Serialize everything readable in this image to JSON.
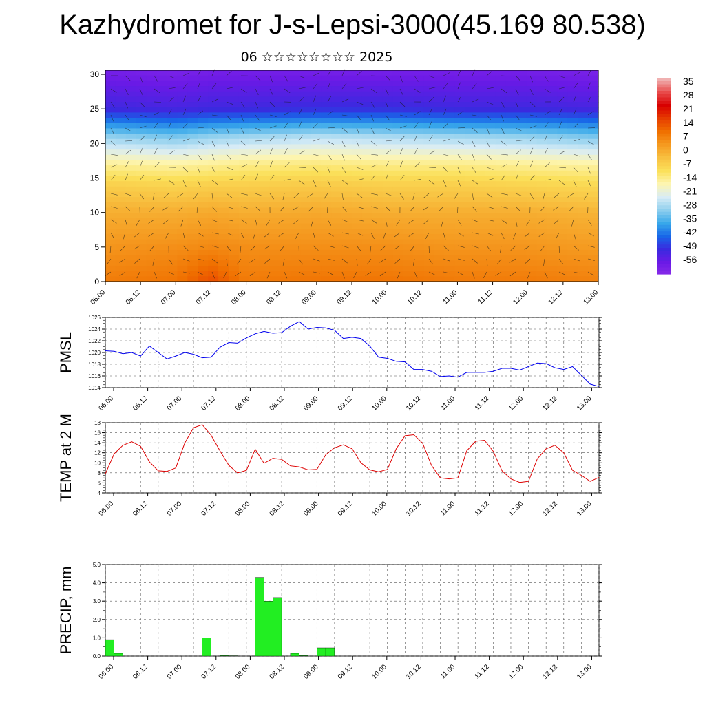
{
  "title": "Kazhydromet for J-s-Lepsi-3000(45.169 80.538)",
  "subtitle": "06 ☆☆☆☆☆☆☆☆ 2025",
  "x_tick_labels": [
    "06.00",
    "06.12",
    "07.00",
    "07.12",
    "08.00",
    "08.12",
    "09.00",
    "09.12",
    "10.00",
    "10.12",
    "11.00",
    "11.12",
    "12.00",
    "12.12",
    "13.00"
  ],
  "colors": {
    "pmsl": "#0000ee",
    "temp": "#dd0000",
    "precip": "#22ee22"
  },
  "chart_data": [
    {
      "type": "heatmap",
      "name": "cross-section",
      "x_range": [
        0,
        168
      ],
      "y_range": [
        0,
        30
      ],
      "y_ticks": [
        0,
        5,
        10,
        15,
        20,
        25,
        30
      ],
      "colorbar_labels": [
        "35",
        "28",
        "21",
        "14",
        "7",
        "0",
        "-7",
        "-14",
        "-21",
        "-28",
        "-35",
        "-42",
        "-49",
        "-56"
      ],
      "colorbar_colors": [
        "#f0b0b0",
        "#e84a4a",
        "#d80000",
        "#e63c00",
        "#f07000",
        "#f59a20",
        "#f8c040",
        "#fbe05a",
        "#fdf5b0",
        "#d8ecf6",
        "#8ecfee",
        "#38a8ea",
        "#1866e8",
        "#3a2adf",
        "#6a1ae6",
        "#8a2be8"
      ],
      "columns": [
        {
          "x": 0,
          "levels": [
            8,
            4,
            0,
            -6,
            -14,
            -28,
            -48,
            -55
          ]
        },
        {
          "x": 24,
          "levels": [
            9,
            5,
            0,
            -7,
            -15,
            -30,
            -49,
            -56
          ]
        },
        {
          "x": 36,
          "levels": [
            14,
            6,
            1,
            -6,
            -14,
            -28,
            -48,
            -55
          ]
        },
        {
          "x": 48,
          "levels": [
            8,
            5,
            0,
            -6,
            -13,
            -27,
            -48,
            -55
          ]
        },
        {
          "x": 72,
          "levels": [
            9,
            5,
            1,
            -5,
            -12,
            -25,
            -47,
            -55
          ]
        },
        {
          "x": 96,
          "levels": [
            9,
            5,
            0,
            -6,
            -13,
            -26,
            -47,
            -55
          ]
        },
        {
          "x": 120,
          "levels": [
            8,
            4,
            0,
            -6,
            -13,
            -27,
            -48,
            -55
          ]
        },
        {
          "x": 144,
          "levels": [
            8,
            4,
            0,
            -7,
            -14,
            -28,
            -48,
            -55
          ]
        },
        {
          "x": 168,
          "levels": [
            7,
            3,
            -1,
            -8,
            -15,
            -30,
            -49,
            -56
          ]
        }
      ],
      "level_heights": [
        0,
        5,
        10,
        14,
        17,
        21,
        25,
        30
      ]
    },
    {
      "type": "line",
      "name": "pmsl",
      "ylabel": "PMSL",
      "ylim": [
        1014,
        1026
      ],
      "y_ticks": [
        1014,
        1016,
        1018,
        1020,
        1022,
        1024,
        1026
      ],
      "x": [
        0,
        3,
        6,
        9,
        12,
        15,
        18,
        21,
        24,
        27,
        30,
        33,
        36,
        39,
        42,
        45,
        48,
        51,
        54,
        57,
        60,
        63,
        66,
        69,
        72,
        75,
        78,
        81,
        84,
        87,
        90,
        93,
        96,
        99,
        102,
        105,
        108,
        111,
        114,
        117,
        120,
        123,
        126,
        129,
        132,
        135,
        138,
        141,
        144,
        147,
        150,
        153,
        156,
        159,
        162,
        165,
        168
      ],
      "values": [
        1020.3,
        1020.2,
        1019.8,
        1020.0,
        1019.4,
        1021.1,
        1020.0,
        1018.9,
        1019.4,
        1020.0,
        1019.7,
        1019.1,
        1019.2,
        1020.9,
        1021.7,
        1021.6,
        1022.5,
        1023.2,
        1023.6,
        1023.3,
        1023.4,
        1024.5,
        1025.3,
        1024.0,
        1024.3,
        1024.2,
        1023.8,
        1022.4,
        1022.6,
        1022.4,
        1021.1,
        1019.2,
        1019.0,
        1018.5,
        1018.4,
        1017.1,
        1017.1,
        1016.8,
        1015.9,
        1016.0,
        1015.8,
        1016.6,
        1016.6,
        1016.6,
        1016.8,
        1017.3,
        1017.3,
        1017.0,
        1017.6,
        1018.2,
        1018.1,
        1017.4,
        1017.1,
        1017.6,
        1016.1,
        1014.6,
        1014.2
      ]
    },
    {
      "type": "line",
      "name": "temp",
      "ylabel": "TEMP at 2 M",
      "ylim": [
        4,
        18
      ],
      "y_ticks": [
        4,
        6,
        8,
        10,
        12,
        14,
        16,
        18
      ],
      "x": [
        0,
        3,
        6,
        9,
        12,
        15,
        18,
        21,
        24,
        27,
        30,
        33,
        36,
        39,
        42,
        45,
        48,
        51,
        54,
        57,
        60,
        63,
        66,
        69,
        72,
        75,
        78,
        81,
        84,
        87,
        90,
        93,
        96,
        99,
        102,
        105,
        108,
        111,
        114,
        117,
        120,
        123,
        126,
        129,
        132,
        135,
        138,
        141,
        144,
        147,
        150,
        153,
        156,
        159,
        162,
        165,
        168
      ],
      "values": [
        7.8,
        11.8,
        13.5,
        14.2,
        13.3,
        10.2,
        8.4,
        8.3,
        9.0,
        13.9,
        17.0,
        17.6,
        15.5,
        12.4,
        9.5,
        8.0,
        8.5,
        12.7,
        9.9,
        10.9,
        10.7,
        9.4,
        9.2,
        8.6,
        8.7,
        11.6,
        13.0,
        13.6,
        12.8,
        10.0,
        8.6,
        8.2,
        8.7,
        12.8,
        15.4,
        15.6,
        13.9,
        9.5,
        7.0,
        6.8,
        7.0,
        12.4,
        14.3,
        14.5,
        12.3,
        8.4,
        6.8,
        6.1,
        6.3,
        10.8,
        12.8,
        13.5,
        12.0,
        8.5,
        7.5,
        6.3,
        7.1
      ]
    },
    {
      "type": "bar",
      "name": "precip",
      "ylabel": "PRECIP, mm",
      "ylim": [
        0,
        5
      ],
      "y_ticks": [
        "0.0",
        "1.0",
        "2.0",
        "3.0",
        "4.0",
        "5.0"
      ],
      "x": [
        3,
        6,
        9,
        12,
        15,
        18,
        21,
        24,
        27,
        30,
        33,
        36,
        39,
        42,
        45,
        48,
        51,
        54,
        57,
        60,
        63,
        66,
        69,
        72,
        75,
        78,
        81,
        84,
        87,
        90,
        93,
        96,
        99,
        102,
        105,
        108,
        111,
        114,
        117,
        120,
        123,
        126,
        129,
        132,
        135,
        138,
        141,
        144,
        147,
        150,
        153,
        156,
        159,
        162,
        165,
        168
      ],
      "values": [
        0.9,
        0.15,
        0,
        0,
        0,
        0,
        0,
        0,
        0,
        0,
        0,
        1.0,
        0,
        0.03,
        0.02,
        0,
        0,
        4.3,
        3.0,
        3.2,
        0,
        0.15,
        0.03,
        0,
        0.45,
        0.45,
        0,
        0,
        0,
        0,
        0,
        0,
        0,
        0,
        0,
        0,
        0,
        0,
        0,
        0,
        0,
        0,
        0,
        0,
        0,
        0,
        0,
        0,
        0,
        0,
        0,
        0,
        0,
        0,
        0,
        0
      ]
    }
  ]
}
